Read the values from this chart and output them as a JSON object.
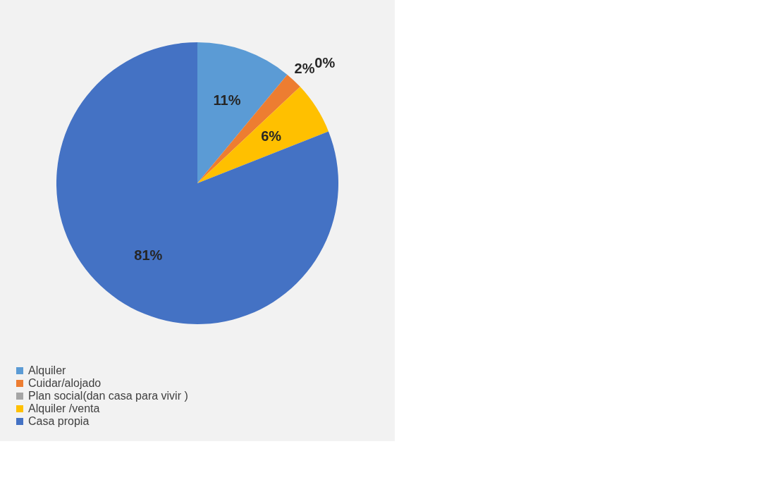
{
  "chart_data": {
    "type": "pie",
    "categories": [
      "Alquiler",
      "Cuidar/alojado",
      "Plan social(dan casa para vivir )",
      "Alquiler /venta",
      "Casa propia"
    ],
    "values": [
      11,
      2,
      0,
      6,
      81
    ],
    "colors": [
      "#5b9bd5",
      "#ed7d31",
      "#a5a5a5",
      "#ffc000",
      "#4472c4"
    ],
    "value_labels": [
      "11%",
      "2%",
      "0%",
      "6%",
      "81%"
    ],
    "legend": "bottom"
  }
}
